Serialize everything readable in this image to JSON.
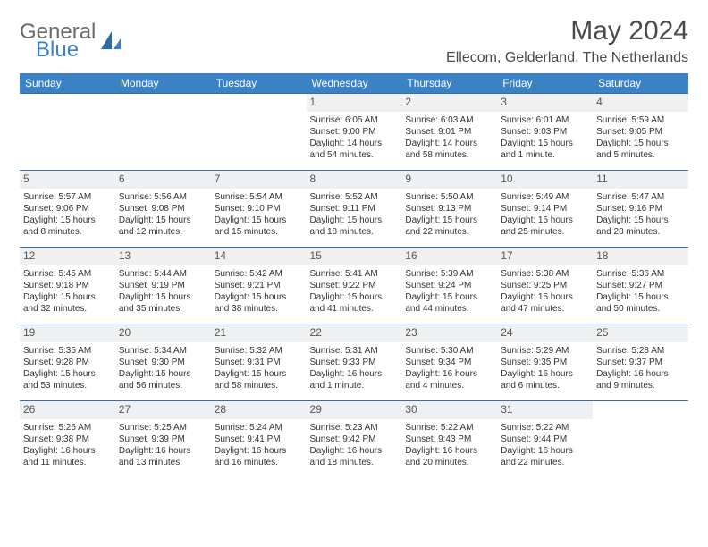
{
  "brand": {
    "general": "General",
    "blue": "Blue"
  },
  "title": "May 2024",
  "location": "Ellecom, Gelderland, The Netherlands",
  "colors": {
    "header_bg": "#3b82c4",
    "header_text": "#ffffff",
    "daynum_bg": "#eef0f2",
    "border": "#3b6ea0",
    "text": "#333333",
    "title_text": "#4a4a4a",
    "logo_gray": "#6b6b6b",
    "logo_blue": "#3b82c4"
  },
  "fonts": {
    "title_size": 30,
    "location_size": 16,
    "th_size": 12,
    "daynum_size": 12,
    "cell_size": 10
  },
  "weekdays": [
    "Sunday",
    "Monday",
    "Tuesday",
    "Wednesday",
    "Thursday",
    "Friday",
    "Saturday"
  ],
  "weeks": [
    [
      null,
      null,
      null,
      {
        "n": "1",
        "sr": "Sunrise: 6:05 AM",
        "ss": "Sunset: 9:00 PM",
        "dl": "Daylight: 14 hours and 54 minutes."
      },
      {
        "n": "2",
        "sr": "Sunrise: 6:03 AM",
        "ss": "Sunset: 9:01 PM",
        "dl": "Daylight: 14 hours and 58 minutes."
      },
      {
        "n": "3",
        "sr": "Sunrise: 6:01 AM",
        "ss": "Sunset: 9:03 PM",
        "dl": "Daylight: 15 hours and 1 minute."
      },
      {
        "n": "4",
        "sr": "Sunrise: 5:59 AM",
        "ss": "Sunset: 9:05 PM",
        "dl": "Daylight: 15 hours and 5 minutes."
      }
    ],
    [
      {
        "n": "5",
        "sr": "Sunrise: 5:57 AM",
        "ss": "Sunset: 9:06 PM",
        "dl": "Daylight: 15 hours and 8 minutes."
      },
      {
        "n": "6",
        "sr": "Sunrise: 5:56 AM",
        "ss": "Sunset: 9:08 PM",
        "dl": "Daylight: 15 hours and 12 minutes."
      },
      {
        "n": "7",
        "sr": "Sunrise: 5:54 AM",
        "ss": "Sunset: 9:10 PM",
        "dl": "Daylight: 15 hours and 15 minutes."
      },
      {
        "n": "8",
        "sr": "Sunrise: 5:52 AM",
        "ss": "Sunset: 9:11 PM",
        "dl": "Daylight: 15 hours and 18 minutes."
      },
      {
        "n": "9",
        "sr": "Sunrise: 5:50 AM",
        "ss": "Sunset: 9:13 PM",
        "dl": "Daylight: 15 hours and 22 minutes."
      },
      {
        "n": "10",
        "sr": "Sunrise: 5:49 AM",
        "ss": "Sunset: 9:14 PM",
        "dl": "Daylight: 15 hours and 25 minutes."
      },
      {
        "n": "11",
        "sr": "Sunrise: 5:47 AM",
        "ss": "Sunset: 9:16 PM",
        "dl": "Daylight: 15 hours and 28 minutes."
      }
    ],
    [
      {
        "n": "12",
        "sr": "Sunrise: 5:45 AM",
        "ss": "Sunset: 9:18 PM",
        "dl": "Daylight: 15 hours and 32 minutes."
      },
      {
        "n": "13",
        "sr": "Sunrise: 5:44 AM",
        "ss": "Sunset: 9:19 PM",
        "dl": "Daylight: 15 hours and 35 minutes."
      },
      {
        "n": "14",
        "sr": "Sunrise: 5:42 AM",
        "ss": "Sunset: 9:21 PM",
        "dl": "Daylight: 15 hours and 38 minutes."
      },
      {
        "n": "15",
        "sr": "Sunrise: 5:41 AM",
        "ss": "Sunset: 9:22 PM",
        "dl": "Daylight: 15 hours and 41 minutes."
      },
      {
        "n": "16",
        "sr": "Sunrise: 5:39 AM",
        "ss": "Sunset: 9:24 PM",
        "dl": "Daylight: 15 hours and 44 minutes."
      },
      {
        "n": "17",
        "sr": "Sunrise: 5:38 AM",
        "ss": "Sunset: 9:25 PM",
        "dl": "Daylight: 15 hours and 47 minutes."
      },
      {
        "n": "18",
        "sr": "Sunrise: 5:36 AM",
        "ss": "Sunset: 9:27 PM",
        "dl": "Daylight: 15 hours and 50 minutes."
      }
    ],
    [
      {
        "n": "19",
        "sr": "Sunrise: 5:35 AM",
        "ss": "Sunset: 9:28 PM",
        "dl": "Daylight: 15 hours and 53 minutes."
      },
      {
        "n": "20",
        "sr": "Sunrise: 5:34 AM",
        "ss": "Sunset: 9:30 PM",
        "dl": "Daylight: 15 hours and 56 minutes."
      },
      {
        "n": "21",
        "sr": "Sunrise: 5:32 AM",
        "ss": "Sunset: 9:31 PM",
        "dl": "Daylight: 15 hours and 58 minutes."
      },
      {
        "n": "22",
        "sr": "Sunrise: 5:31 AM",
        "ss": "Sunset: 9:33 PM",
        "dl": "Daylight: 16 hours and 1 minute."
      },
      {
        "n": "23",
        "sr": "Sunrise: 5:30 AM",
        "ss": "Sunset: 9:34 PM",
        "dl": "Daylight: 16 hours and 4 minutes."
      },
      {
        "n": "24",
        "sr": "Sunrise: 5:29 AM",
        "ss": "Sunset: 9:35 PM",
        "dl": "Daylight: 16 hours and 6 minutes."
      },
      {
        "n": "25",
        "sr": "Sunrise: 5:28 AM",
        "ss": "Sunset: 9:37 PM",
        "dl": "Daylight: 16 hours and 9 minutes."
      }
    ],
    [
      {
        "n": "26",
        "sr": "Sunrise: 5:26 AM",
        "ss": "Sunset: 9:38 PM",
        "dl": "Daylight: 16 hours and 11 minutes."
      },
      {
        "n": "27",
        "sr": "Sunrise: 5:25 AM",
        "ss": "Sunset: 9:39 PM",
        "dl": "Daylight: 16 hours and 13 minutes."
      },
      {
        "n": "28",
        "sr": "Sunrise: 5:24 AM",
        "ss": "Sunset: 9:41 PM",
        "dl": "Daylight: 16 hours and 16 minutes."
      },
      {
        "n": "29",
        "sr": "Sunrise: 5:23 AM",
        "ss": "Sunset: 9:42 PM",
        "dl": "Daylight: 16 hours and 18 minutes."
      },
      {
        "n": "30",
        "sr": "Sunrise: 5:22 AM",
        "ss": "Sunset: 9:43 PM",
        "dl": "Daylight: 16 hours and 20 minutes."
      },
      {
        "n": "31",
        "sr": "Sunrise: 5:22 AM",
        "ss": "Sunset: 9:44 PM",
        "dl": "Daylight: 16 hours and 22 minutes."
      },
      null
    ]
  ]
}
